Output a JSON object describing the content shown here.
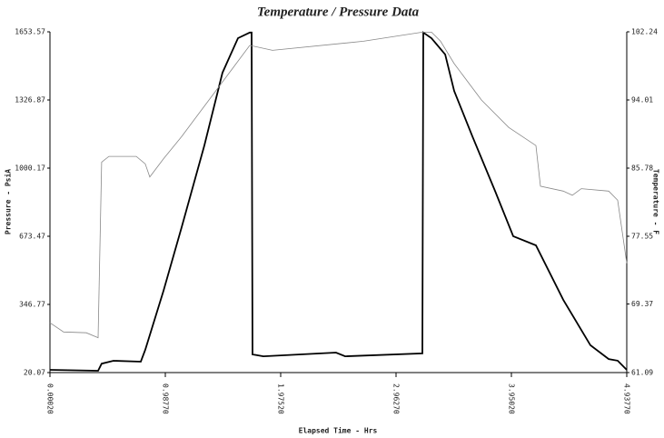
{
  "chart_data": {
    "type": "line",
    "title": "Temperature / Pressure Data",
    "x_label": "Elapsed Time - Hrs",
    "y_label": "Pressure - PsiA",
    "y2_label": "Temperature - F",
    "xlim": [
      0.0002,
      4.9377
    ],
    "xticks": [
      {
        "value": 0.0002,
        "label": "0.00020"
      },
      {
        "value": 0.9877,
        "label": "0.98770"
      },
      {
        "value": 1.9752,
        "label": "1.97520"
      },
      {
        "value": 2.9627,
        "label": "2.96270"
      },
      {
        "value": 3.9502,
        "label": "3.95020"
      },
      {
        "value": 4.9377,
        "label": "4.93770"
      }
    ],
    "ylim": [
      20.07,
      1653.57
    ],
    "yticks": [
      20.07,
      346.77,
      673.47,
      1000.17,
      1326.87,
      1653.57
    ],
    "y2lim": [
      61.09,
      102.24
    ],
    "y2ticks": [
      61.09,
      69.37,
      77.55,
      85.78,
      94.01,
      102.24
    ],
    "series": [
      {
        "name": "Pressure",
        "color": "#000000",
        "axis": "y",
        "x": [
          0.0002,
          0.412,
          0.443,
          0.544,
          0.778,
          0.816,
          0.972,
          1.128,
          1.322,
          1.477,
          1.61,
          1.711,
          1.726,
          1.734,
          1.827,
          2.449,
          2.527,
          3.188,
          3.196,
          3.266,
          3.383,
          3.46,
          3.616,
          3.81,
          3.966,
          4.16,
          4.394,
          4.627,
          4.783,
          4.86,
          4.938
        ],
        "values": [
          33.1,
          28.8,
          62.8,
          76.7,
          72.3,
          129,
          412,
          717,
          1109,
          1457,
          1623,
          1650,
          1650,
          107,
          98,
          116,
          98,
          112,
          1650,
          1623,
          1545,
          1370,
          1153,
          891,
          674,
          630,
          369,
          151,
          85,
          77,
          33
        ]
      },
      {
        "name": "Temperature",
        "color": "#888888",
        "axis": "y2",
        "x": [
          0.0002,
          0.117,
          0.311,
          0.412,
          0.443,
          0.505,
          0.739,
          0.816,
          0.855,
          0.972,
          1.128,
          1.361,
          1.594,
          1.711,
          1.905,
          2.683,
          3.188,
          3.266,
          3.344,
          3.46,
          3.694,
          3.927,
          4.16,
          4.199,
          4.394,
          4.472,
          4.549,
          4.783,
          4.86,
          4.938
        ],
        "values": [
          67.1,
          66.0,
          65.9,
          65.3,
          86.5,
          87.2,
          87.2,
          86.3,
          84.7,
          86.9,
          89.6,
          94.0,
          98.4,
          100.6,
          100.0,
          101.1,
          102.2,
          102.2,
          101.1,
          98.4,
          94.0,
          90.7,
          88.5,
          83.6,
          83.0,
          82.5,
          83.3,
          83.0,
          81.9,
          74.3
        ]
      }
    ]
  }
}
